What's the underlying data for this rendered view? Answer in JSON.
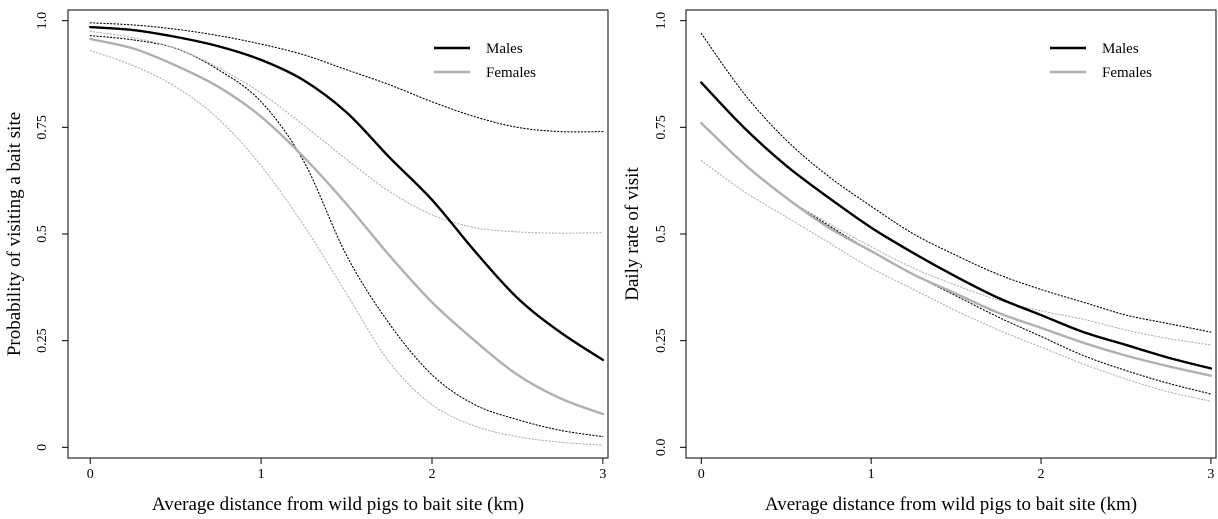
{
  "chart_data": [
    {
      "type": "line",
      "title": "",
      "xlabel": "Average distance from wild pigs to bait site (km)",
      "ylabel": "Probability of visiting a bait site",
      "xlim": [
        -0.13,
        3.03
      ],
      "ylim": [
        -0.025,
        1.025
      ],
      "xticks": [
        0,
        1,
        2,
        3
      ],
      "xtick_labels": [
        "0",
        "1",
        "2",
        "3"
      ],
      "yticks": [
        0,
        0.25,
        0.5,
        0.75,
        1.0
      ],
      "ytick_labels": [
        "0",
        "0.25",
        "0.5",
        "0.75",
        "1.0"
      ],
      "grid": false,
      "legend": {
        "position": "top-right",
        "entries": [
          "Males",
          "Females"
        ]
      },
      "x": [
        0,
        0.25,
        0.5,
        0.75,
        1,
        1.25,
        1.5,
        1.75,
        2,
        2.25,
        2.5,
        2.75,
        3
      ],
      "series": [
        {
          "name": "Males",
          "style": "solid",
          "color": "#000000",
          "values": [
            0.985,
            0.978,
            0.962,
            0.94,
            0.908,
            0.86,
            0.785,
            0.68,
            0.58,
            0.46,
            0.35,
            0.27,
            0.205
          ]
        },
        {
          "name": "Males lower bound",
          "style": "dotted",
          "color": "#000000",
          "values": [
            0.965,
            0.955,
            0.935,
            0.885,
            0.81,
            0.67,
            0.45,
            0.29,
            0.17,
            0.1,
            0.065,
            0.04,
            0.025
          ]
        },
        {
          "name": "Males upper bound",
          "style": "dotted",
          "color": "#000000",
          "values": [
            0.995,
            0.99,
            0.98,
            0.965,
            0.945,
            0.92,
            0.885,
            0.85,
            0.81,
            0.775,
            0.75,
            0.74,
            0.74
          ]
        },
        {
          "name": "Females",
          "style": "solid",
          "color": "#b0b0b0",
          "values": [
            0.957,
            0.935,
            0.895,
            0.845,
            0.775,
            0.68,
            0.57,
            0.45,
            0.34,
            0.25,
            0.17,
            0.115,
            0.078
          ]
        },
        {
          "name": "Females lower bound",
          "style": "dotted",
          "color": "#b0b0b0",
          "values": [
            0.93,
            0.895,
            0.845,
            0.77,
            0.66,
            0.52,
            0.36,
            0.2,
            0.1,
            0.05,
            0.025,
            0.012,
            0.005
          ]
        },
        {
          "name": "Females upper bound",
          "style": "dotted",
          "color": "#b0b0b0",
          "values": [
            0.975,
            0.96,
            0.935,
            0.89,
            0.83,
            0.755,
            0.675,
            0.6,
            0.545,
            0.515,
            0.505,
            0.502,
            0.503
          ]
        }
      ]
    },
    {
      "type": "line",
      "title": "",
      "xlabel": "Average distance from wild pigs to bait site (km)",
      "ylabel": "Daily rate of visit",
      "xlim": [
        -0.09,
        3.03
      ],
      "ylim": [
        -0.025,
        1.025
      ],
      "xticks": [
        0,
        1,
        2,
        3
      ],
      "xtick_labels": [
        "0",
        "1",
        "2",
        "3"
      ],
      "yticks": [
        0,
        0.25,
        0.5,
        0.75,
        1.0
      ],
      "ytick_labels": [
        "0.0",
        "0.25",
        "0.5",
        "0.75",
        "1.0"
      ],
      "grid": false,
      "legend": {
        "position": "top-right",
        "entries": [
          "Males",
          "Females"
        ]
      },
      "x": [
        0,
        0.25,
        0.5,
        0.75,
        1,
        1.25,
        1.5,
        1.75,
        2,
        2.25,
        2.5,
        2.75,
        3
      ],
      "series": [
        {
          "name": "Males",
          "style": "solid",
          "color": "#000000",
          "values": [
            0.855,
            0.75,
            0.66,
            0.585,
            0.515,
            0.455,
            0.4,
            0.35,
            0.31,
            0.27,
            0.24,
            0.21,
            0.185
          ]
        },
        {
          "name": "Males lower bound",
          "style": "dotted",
          "color": "#000000",
          "values": [
            0.76,
            0.665,
            0.585,
            0.52,
            0.46,
            0.405,
            0.355,
            0.305,
            0.26,
            0.215,
            0.18,
            0.15,
            0.125
          ]
        },
        {
          "name": "Males upper bound",
          "style": "dotted",
          "color": "#000000",
          "values": [
            0.97,
            0.83,
            0.72,
            0.635,
            0.565,
            0.5,
            0.45,
            0.405,
            0.37,
            0.34,
            0.31,
            0.29,
            0.27
          ]
        },
        {
          "name": "Females",
          "style": "solid",
          "color": "#b0b0b0",
          "values": [
            0.76,
            0.665,
            0.585,
            0.515,
            0.46,
            0.405,
            0.36,
            0.315,
            0.28,
            0.245,
            0.215,
            0.19,
            0.168
          ]
        },
        {
          "name": "Females lower bound",
          "style": "dotted",
          "color": "#b0b0b0",
          "values": [
            0.672,
            0.6,
            0.54,
            0.48,
            0.42,
            0.37,
            0.32,
            0.275,
            0.235,
            0.195,
            0.16,
            0.13,
            0.108
          ]
        },
        {
          "name": "Females upper bound",
          "style": "dotted",
          "color": "#b0b0b0",
          "values": [
            0.76,
            0.665,
            0.585,
            0.525,
            0.47,
            0.42,
            0.38,
            0.345,
            0.32,
            0.3,
            0.275,
            0.255,
            0.24
          ]
        }
      ]
    }
  ]
}
